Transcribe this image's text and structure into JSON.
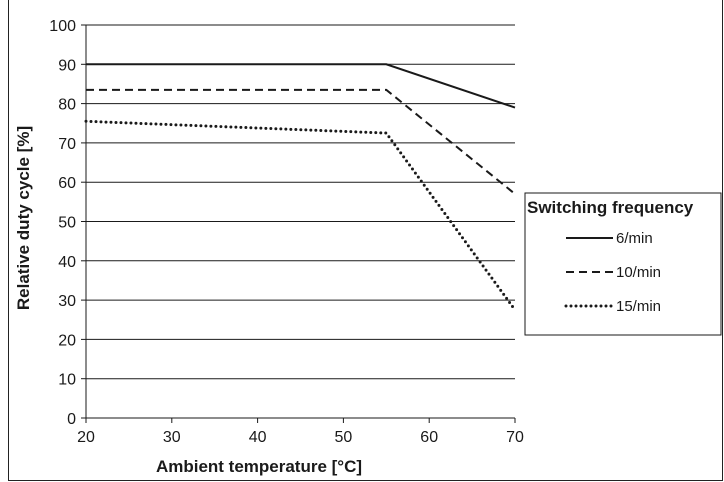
{
  "chart_data": {
    "type": "line",
    "xlabel": "Ambient temperature [°C]",
    "ylabel": "Relative duty cycle [%]",
    "xlim": [
      20,
      70
    ],
    "ylim": [
      0,
      100
    ],
    "x_ticks": [
      20,
      30,
      40,
      50,
      60,
      70
    ],
    "y_ticks": [
      0,
      10,
      20,
      30,
      40,
      50,
      60,
      70,
      80,
      90,
      100
    ],
    "grid": "horizontal",
    "legend": {
      "title": "Switching frequency",
      "placement": "right"
    },
    "series": [
      {
        "name": "6/min",
        "style": "solid",
        "x": [
          20,
          55,
          70
        ],
        "y": [
          90,
          90,
          79
        ]
      },
      {
        "name": "10/min",
        "style": "dashed",
        "x": [
          20,
          55,
          70
        ],
        "y": [
          83.5,
          83.5,
          57
        ]
      },
      {
        "name": "15/min",
        "style": "dotted",
        "x": [
          20,
          55,
          70
        ],
        "y": [
          75.5,
          72.5,
          27.5
        ]
      }
    ],
    "colors": {
      "line": "#1a1a1a",
      "grid": "#1a1a1a"
    }
  }
}
